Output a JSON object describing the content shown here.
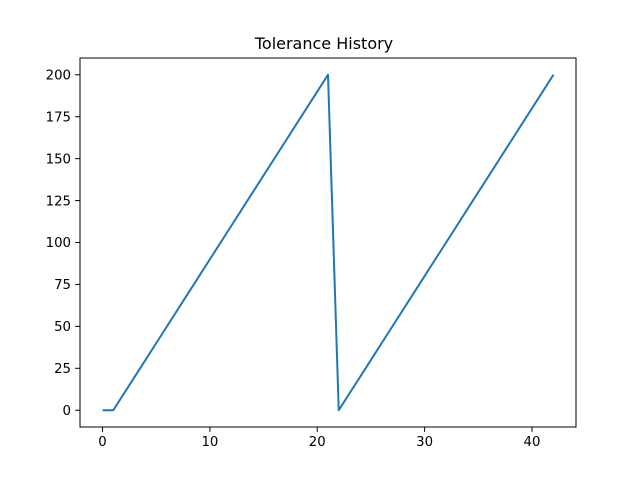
{
  "chart_data": {
    "type": "line",
    "title": "Tolerance History",
    "xlabel": "",
    "ylabel": "",
    "xlim": [
      -2.1,
      44.1
    ],
    "ylim": [
      -10,
      210
    ],
    "x_ticks": [
      0,
      10,
      20,
      30,
      40
    ],
    "x_tick_labels": [
      "0",
      "10",
      "20",
      "30",
      "40"
    ],
    "y_ticks": [
      0,
      25,
      50,
      75,
      100,
      125,
      150,
      175,
      200
    ],
    "y_tick_labels": [
      "0",
      "25",
      "50",
      "75",
      "100",
      "125",
      "150",
      "175",
      "200"
    ],
    "grid": false,
    "legend": "none",
    "series": [
      {
        "color": "#1f77b4",
        "x": [
          0,
          1,
          2,
          3,
          4,
          5,
          6,
          7,
          8,
          9,
          10,
          11,
          12,
          13,
          14,
          15,
          16,
          17,
          18,
          19,
          20,
          21,
          22,
          23,
          24,
          25,
          26,
          27,
          28,
          29,
          30,
          31,
          32,
          33,
          34,
          35,
          36,
          37,
          38,
          39,
          40,
          41,
          42
        ],
        "y": [
          0,
          0,
          10,
          20,
          30,
          40,
          50,
          60,
          70,
          80,
          90,
          100,
          110,
          120,
          130,
          140,
          150,
          160,
          170,
          180,
          190,
          200,
          0,
          10,
          20,
          30,
          40,
          50,
          60,
          70,
          80,
          90,
          100,
          110,
          120,
          130,
          140,
          150,
          160,
          170,
          180,
          190,
          200
        ]
      }
    ]
  }
}
